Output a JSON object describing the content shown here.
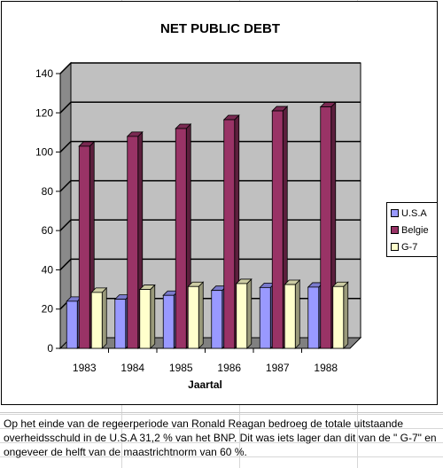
{
  "chart_data": {
    "type": "bar",
    "title": "NET PUBLIC DEBT",
    "xlabel": "Jaartal",
    "ylabel": "",
    "ylim": [
      0,
      140
    ],
    "yticks": [
      "0",
      "20",
      "40",
      "60",
      "80",
      "100",
      "120",
      "140"
    ],
    "categories": [
      "1983",
      "1984",
      "1985",
      "1986",
      "1987",
      "1988"
    ],
    "series": [
      {
        "name": "U.S.A",
        "color": "#9999ff",
        "values": [
          24,
          25,
          27,
          29.5,
          31,
          31.2
        ]
      },
      {
        "name": "Belgie",
        "color": "#993366",
        "values": [
          103,
          108,
          112,
          116.5,
          121,
          123
        ]
      },
      {
        "name": "G-7",
        "color": "#ffffcc",
        "values": [
          28.5,
          30,
          31.5,
          33,
          32.5,
          31.5
        ]
      }
    ],
    "grid": true,
    "legend": "right",
    "plot_background": "#c0c0c0"
  },
  "caption": {
    "text": "Op het einde van de regeerperiode van Ronald Reagan bedroeg de totale uitstaande overheidsschuld in de U.S.A 31,2 % van het BNP. Dit was iets lager dan dit van de \" G-7\" en ongeveer de helft van de maastrichtnorm van 60 %."
  }
}
